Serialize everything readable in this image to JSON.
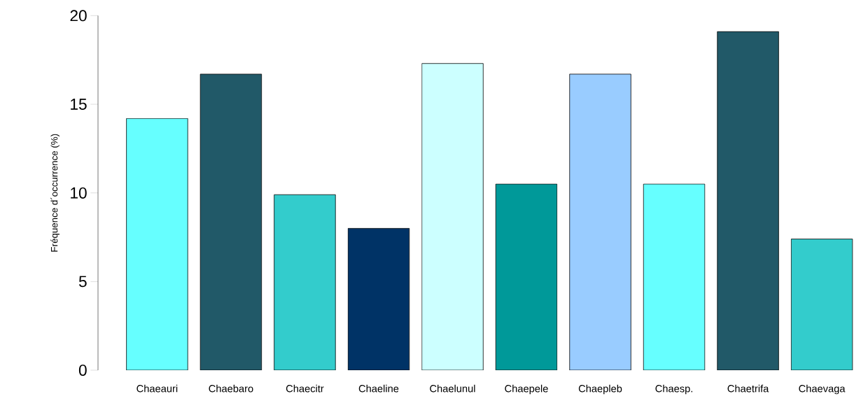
{
  "chart_data": {
    "type": "bar",
    "ylabel": "Fréquence d´occurrence (%)",
    "categories": [
      "Chaeauri",
      "Chaebaro",
      "Chaecitr",
      "Chaeline",
      "Chaelunul",
      "Chaepele",
      "Chaepleb",
      "Chaesp.",
      "Chaetrifa",
      "Chaevaga"
    ],
    "values": [
      14.2,
      16.7,
      9.9,
      8.0,
      17.3,
      10.5,
      16.7,
      10.5,
      19.1,
      7.4
    ],
    "colors": [
      "#66ffff",
      "#215968",
      "#33cccc",
      "#003366",
      "#ccffff",
      "#009999",
      "#99ccff",
      "#66ffff",
      "#215968",
      "#33cccc"
    ],
    "ylim": [
      0,
      20
    ],
    "yticks": [
      0,
      5,
      10,
      15,
      20
    ]
  }
}
